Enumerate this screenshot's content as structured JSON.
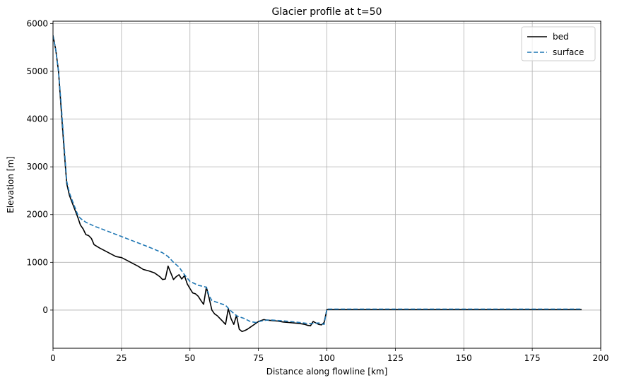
{
  "chart_data": {
    "type": "line",
    "title": "Glacier profile at t=50",
    "xlabel": "Distance along flowline [km]",
    "ylabel": "Elevation [m]",
    "xlim": [
      0,
      200
    ],
    "ylim": [
      -800,
      6050
    ],
    "xticks": [
      0,
      25,
      50,
      75,
      100,
      125,
      150,
      175,
      200
    ],
    "yticks": [
      0,
      1000,
      2000,
      3000,
      4000,
      5000,
      6000
    ],
    "grid": true,
    "legend_position": "top-right",
    "series": [
      {
        "name": "bed",
        "color": "#000000",
        "style": "solid",
        "x": [
          0,
          1,
          2,
          3,
          4,
          5,
          6,
          7,
          8,
          9,
          10,
          11,
          12,
          13,
          14,
          15,
          17,
          19,
          21,
          23,
          25,
          27,
          29,
          31,
          33,
          35,
          37,
          39,
          40,
          41,
          42,
          43,
          44,
          45,
          46,
          47,
          48,
          49,
          50,
          51,
          52,
          53,
          54,
          55,
          56,
          57,
          58,
          59,
          60,
          61,
          62,
          63,
          64,
          65,
          66,
          67,
          68,
          69,
          70,
          71,
          72,
          73,
          74,
          75,
          76,
          77,
          78,
          80,
          82,
          84,
          86,
          88,
          90,
          92,
          93,
          94,
          95,
          96,
          97,
          98,
          99,
          100,
          105,
          110,
          115,
          120,
          125,
          130,
          140,
          150,
          160,
          170,
          180,
          190,
          193
        ],
        "y": [
          5750,
          5450,
          5000,
          4200,
          3400,
          2650,
          2400,
          2250,
          2100,
          1950,
          1780,
          1700,
          1580,
          1560,
          1500,
          1370,
          1300,
          1240,
          1180,
          1120,
          1100,
          1040,
          980,
          920,
          850,
          820,
          780,
          700,
          640,
          650,
          920,
          780,
          640,
          700,
          740,
          650,
          720,
          550,
          450,
          360,
          340,
          290,
          200,
          120,
          480,
          250,
          0,
          -80,
          -120,
          -180,
          -240,
          -300,
          30,
          -180,
          -300,
          -110,
          -400,
          -450,
          -430,
          -400,
          -360,
          -320,
          -280,
          -240,
          -220,
          -200,
          -210,
          -220,
          -230,
          -250,
          -260,
          -270,
          -280,
          -300,
          -320,
          -330,
          -240,
          -270,
          -300,
          -310,
          -260,
          10,
          10,
          10,
          10,
          10,
          10,
          10,
          10,
          10,
          10,
          10,
          10,
          10,
          10
        ]
      },
      {
        "name": "surface",
        "color": "#1f77b4",
        "style": "dashed",
        "x": [
          0,
          1,
          2,
          3,
          4,
          5,
          6,
          7,
          8,
          9,
          10,
          12,
          15,
          20,
          25,
          30,
          35,
          40,
          42,
          44,
          46,
          48,
          50,
          53,
          56,
          57,
          58,
          60,
          63,
          65,
          67,
          70,
          72,
          74,
          76,
          78,
          80,
          85,
          90,
          93,
          95,
          97,
          99,
          100,
          110,
          120,
          130,
          140,
          150,
          160,
          170,
          180,
          190,
          193
        ],
        "y": [
          5750,
          5450,
          5000,
          4300,
          3500,
          2700,
          2450,
          2300,
          2150,
          2000,
          1920,
          1840,
          1760,
          1650,
          1540,
          1430,
          1320,
          1200,
          1120,
          1000,
          900,
          740,
          600,
          520,
          480,
          300,
          200,
          160,
          100,
          -20,
          -120,
          -180,
          -240,
          -260,
          -230,
          -210,
          -210,
          -230,
          -260,
          -280,
          -280,
          -270,
          -300,
          20,
          20,
          20,
          20,
          20,
          20,
          20,
          20,
          20,
          20,
          20
        ]
      }
    ]
  }
}
